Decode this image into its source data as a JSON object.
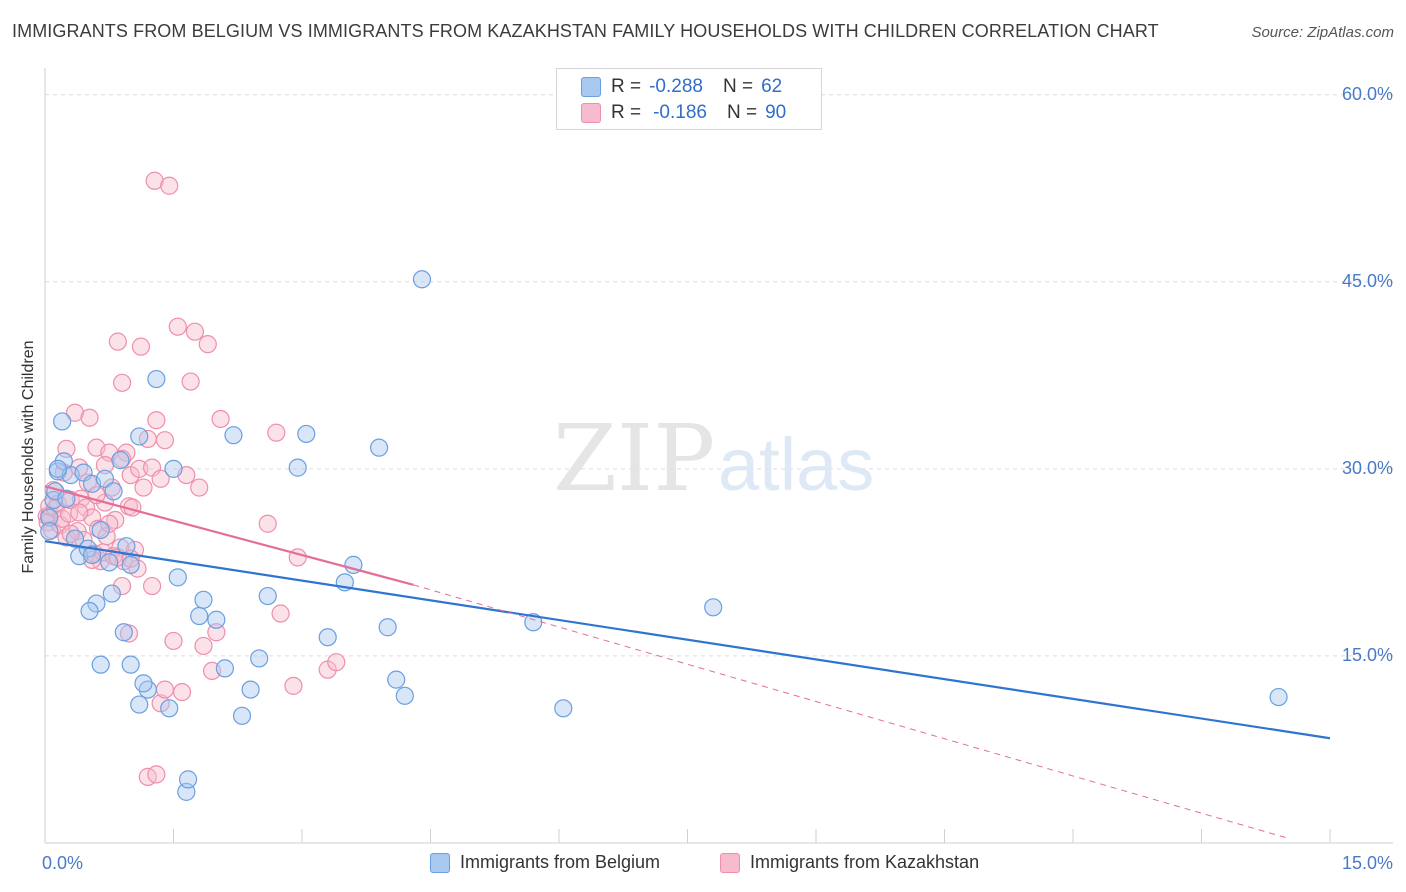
{
  "title": "IMMIGRANTS FROM BELGIUM VS IMMIGRANTS FROM KAZAKHSTAN FAMILY HOUSEHOLDS WITH CHILDREN CORRELATION CHART",
  "source": "Source: ZipAtlas.com",
  "watermark": {
    "zip": "ZIP",
    "atlas": "atlas"
  },
  "stats": {
    "belgium": {
      "r_label": "R =",
      "r_value": "-0.288",
      "n_label": "N =",
      "n_value": "62"
    },
    "kazakhstan": {
      "r_label": "R =",
      "r_value": "-0.186",
      "n_label": "N =",
      "n_value": "90"
    }
  },
  "colors": {
    "belgium_fill": "#a9c8f0",
    "belgium_stroke": "#6a9fe0",
    "belgium_line": "#2f74d0",
    "kazakhstan_fill": "#f6bccd",
    "kazakhstan_stroke": "#ee8fab",
    "kazakhstan_line": "#e46e96",
    "tick_label": "#4a7ac7",
    "grid": "#dcdcdc"
  },
  "chart_data": {
    "type": "scatter",
    "title": "IMMIGRANTS FROM BELGIUM VS IMMIGRANTS FROM KAZAKHSTAN FAMILY HOUSEHOLDS WITH CHILDREN CORRELATION CHART",
    "xlabel": "",
    "ylabel": "Family Households with Children",
    "xlim": [
      0,
      15
    ],
    "ylim": [
      0,
      61.5
    ],
    "x_tick_labels": [
      "0.0%",
      "15.0%"
    ],
    "y_ticks": [
      15,
      30,
      45,
      60
    ],
    "y_tick_labels": [
      "15.0%",
      "30.0%",
      "45.0%",
      "60.0%"
    ],
    "grid": true,
    "legend_position": "bottom",
    "series": [
      {
        "name": "Immigrants from Belgium",
        "points": [
          [
            0.05,
            26.1
          ],
          [
            0.05,
            25.0
          ],
          [
            0.1,
            27.5
          ],
          [
            0.12,
            28.2
          ],
          [
            0.15,
            29.8
          ],
          [
            0.2,
            33.8
          ],
          [
            0.22,
            30.6
          ],
          [
            0.25,
            27.6
          ],
          [
            0.3,
            29.5
          ],
          [
            0.35,
            24.4
          ],
          [
            0.4,
            23.0
          ],
          [
            0.45,
            29.7
          ],
          [
            0.5,
            23.6
          ],
          [
            0.55,
            28.8
          ],
          [
            0.6,
            19.2
          ],
          [
            0.65,
            25.1
          ],
          [
            0.7,
            29.2
          ],
          [
            0.75,
            22.5
          ],
          [
            0.78,
            20.0
          ],
          [
            0.8,
            28.2
          ],
          [
            0.88,
            30.7
          ],
          [
            0.95,
            23.8
          ],
          [
            1.0,
            22.3
          ],
          [
            1.1,
            32.6
          ],
          [
            1.2,
            12.3
          ],
          [
            1.3,
            37.2
          ],
          [
            1.5,
            30.0
          ],
          [
            1.55,
            21.3
          ],
          [
            1.8,
            18.2
          ],
          [
            2.0,
            17.9
          ],
          [
            2.1,
            14.0
          ],
          [
            2.2,
            32.7
          ],
          [
            2.3,
            10.2
          ],
          [
            2.4,
            12.3
          ],
          [
            2.5,
            14.8
          ],
          [
            2.6,
            19.8
          ],
          [
            2.95,
            30.1
          ],
          [
            3.05,
            32.8
          ],
          [
            3.3,
            16.5
          ],
          [
            3.5,
            20.9
          ],
          [
            3.6,
            22.3
          ],
          [
            3.9,
            31.7
          ],
          [
            4.0,
            17.3
          ],
          [
            4.1,
            13.1
          ],
          [
            4.2,
            11.8
          ],
          [
            4.4,
            45.2
          ],
          [
            0.15,
            30.0
          ],
          [
            0.55,
            23.1
          ],
          [
            0.65,
            14.3
          ],
          [
            0.92,
            16.9
          ],
          [
            1.0,
            14.3
          ],
          [
            1.1,
            11.1
          ],
          [
            1.15,
            12.8
          ],
          [
            1.45,
            10.8
          ],
          [
            1.65,
            4.1
          ],
          [
            1.67,
            5.1
          ],
          [
            0.52,
            18.6
          ],
          [
            1.85,
            19.5
          ],
          [
            5.7,
            17.7
          ],
          [
            6.05,
            10.8
          ],
          [
            7.8,
            18.9
          ],
          [
            14.4,
            11.7
          ]
        ]
      },
      {
        "name": "Immigrants from Kazakhstan",
        "points": [
          [
            0.02,
            26.2
          ],
          [
            0.03,
            25.7
          ],
          [
            0.05,
            26.3
          ],
          [
            0.05,
            27.0
          ],
          [
            0.08,
            25.1
          ],
          [
            0.1,
            28.3
          ],
          [
            0.12,
            26.8
          ],
          [
            0.15,
            27.2
          ],
          [
            0.18,
            25.5
          ],
          [
            0.2,
            26.0
          ],
          [
            0.22,
            29.7
          ],
          [
            0.25,
            24.5
          ],
          [
            0.28,
            26.4
          ],
          [
            0.3,
            27.5
          ],
          [
            0.35,
            34.5
          ],
          [
            0.38,
            25.0
          ],
          [
            0.4,
            30.1
          ],
          [
            0.42,
            27.6
          ],
          [
            0.45,
            24.3
          ],
          [
            0.48,
            26.9
          ],
          [
            0.5,
            28.9
          ],
          [
            0.52,
            34.1
          ],
          [
            0.55,
            26.1
          ],
          [
            0.58,
            23.2
          ],
          [
            0.6,
            31.7
          ],
          [
            0.62,
            25.2
          ],
          [
            0.65,
            22.6
          ],
          [
            0.68,
            23.3
          ],
          [
            0.7,
            27.3
          ],
          [
            0.72,
            24.6
          ],
          [
            0.75,
            31.3
          ],
          [
            0.78,
            28.5
          ],
          [
            0.8,
            23.0
          ],
          [
            0.82,
            25.9
          ],
          [
            0.85,
            40.2
          ],
          [
            0.88,
            23.7
          ],
          [
            0.9,
            36.9
          ],
          [
            0.92,
            22.6
          ],
          [
            0.95,
            31.3
          ],
          [
            0.98,
            27.0
          ],
          [
            1.0,
            29.5
          ],
          [
            1.02,
            26.9
          ],
          [
            1.05,
            23.5
          ],
          [
            1.08,
            22.0
          ],
          [
            1.1,
            30.0
          ],
          [
            1.12,
            39.8
          ],
          [
            1.15,
            28.5
          ],
          [
            1.2,
            32.4
          ],
          [
            1.25,
            30.1
          ],
          [
            1.28,
            53.1
          ],
          [
            1.3,
            33.9
          ],
          [
            1.35,
            29.2
          ],
          [
            1.4,
            32.3
          ],
          [
            1.45,
            52.7
          ],
          [
            1.5,
            16.2
          ],
          [
            1.55,
            41.4
          ],
          [
            1.6,
            12.1
          ],
          [
            1.65,
            29.5
          ],
          [
            1.7,
            37.0
          ],
          [
            1.75,
            41.0
          ],
          [
            1.8,
            28.5
          ],
          [
            1.85,
            15.8
          ],
          [
            1.9,
            40.0
          ],
          [
            1.95,
            13.8
          ],
          [
            2.0,
            16.9
          ],
          [
            2.05,
            34.0
          ],
          [
            2.6,
            25.6
          ],
          [
            2.7,
            32.9
          ],
          [
            2.75,
            18.4
          ],
          [
            2.9,
            12.6
          ],
          [
            2.95,
            22.9
          ],
          [
            3.3,
            13.9
          ],
          [
            3.4,
            14.5
          ],
          [
            0.98,
            16.8
          ],
          [
            0.9,
            20.6
          ],
          [
            0.85,
            22.9
          ],
          [
            1.2,
            5.3
          ],
          [
            1.3,
            5.5
          ],
          [
            1.35,
            11.2
          ],
          [
            1.4,
            12.3
          ],
          [
            0.55,
            22.7
          ],
          [
            0.6,
            27.9
          ],
          [
            0.7,
            30.3
          ],
          [
            0.75,
            25.6
          ],
          [
            0.9,
            30.8
          ],
          [
            1.0,
            22.8
          ],
          [
            1.25,
            20.6
          ],
          [
            0.25,
            31.6
          ],
          [
            0.3,
            24.8
          ],
          [
            0.4,
            26.5
          ]
        ]
      }
    ],
    "trend_lines": [
      {
        "series": "Immigrants from Belgium",
        "x": [
          0,
          15
        ],
        "y": [
          24.2,
          8.4
        ],
        "style": "solid"
      },
      {
        "series": "Immigrants from Kazakhstan",
        "x": [
          0,
          4.3
        ],
        "y": [
          28.6,
          20.7
        ],
        "style": "solid"
      },
      {
        "series": "Immigrants from Kazakhstan",
        "x": [
          4.3,
          14.5
        ],
        "y": [
          20.7,
          0.4
        ],
        "style": "dashed"
      }
    ]
  },
  "legend": {
    "belgium": "Immigrants from Belgium",
    "kazakhstan": "Immigrants from Kazakhstan"
  }
}
